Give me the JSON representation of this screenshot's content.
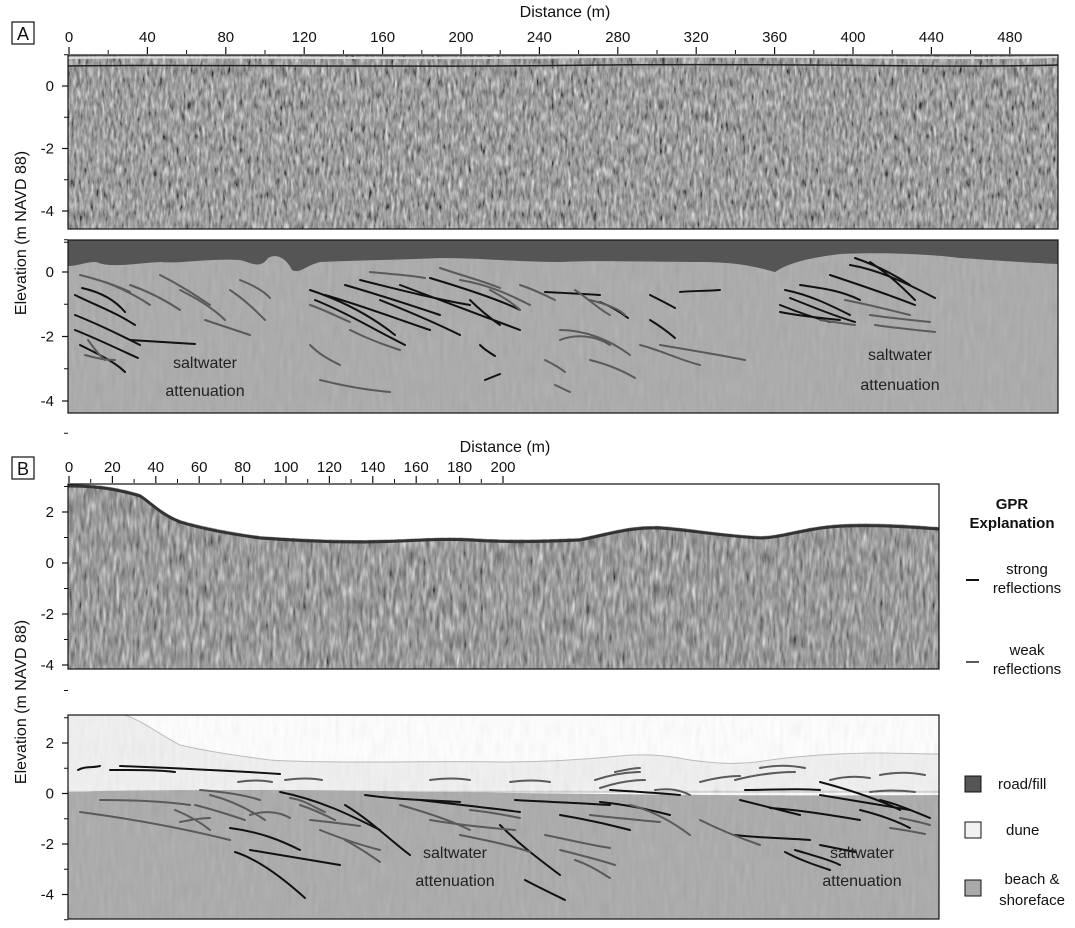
{
  "panel_a": {
    "letter": "A",
    "x_axis_title": "Distance (m)",
    "x_ticks": [
      "0",
      "40",
      "80",
      "120",
      "160",
      "200",
      "240",
      "280",
      "320",
      "360",
      "400",
      "440",
      "480"
    ],
    "y_ticks_top": [
      "0",
      "-2",
      "-4"
    ],
    "y_ticks_bottom": [
      "0",
      "-2",
      "-4"
    ],
    "annotations": [
      {
        "line1": "saltwater",
        "line2": "attenuation"
      },
      {
        "line1": "saltwater",
        "line2": "attenuation"
      }
    ]
  },
  "panel_b": {
    "letter": "B",
    "x_axis_title": "Distance (m)",
    "x_ticks": [
      "0",
      "20",
      "40",
      "60",
      "80",
      "100",
      "120",
      "140",
      "160",
      "180",
      "200"
    ],
    "y_ticks_top": [
      "2",
      "0",
      "-2",
      "-4"
    ],
    "y_ticks_bottom": [
      "2",
      "0",
      "-2",
      "-4"
    ],
    "annotations": [
      {
        "line1": "saltwater",
        "line2": "attenuation"
      },
      {
        "line1": "saltwater",
        "line2": "attenuation"
      }
    ]
  },
  "y_axis_title": "Elevation (m NAVD 88)",
  "legend": {
    "title_line1": "GPR",
    "title_line2": "Explanation",
    "items": [
      {
        "line1": "strong",
        "line2": "reflections",
        "color": "#111111"
      },
      {
        "line1": "weak",
        "line2": "reflections",
        "color": "#5a5a5a"
      }
    ],
    "units": [
      {
        "label": "road/fill",
        "color": "#555555"
      },
      {
        "label": "dune",
        "color": "#f1f1f1"
      },
      {
        "label_line1": "beach &",
        "label_line2": "shoreface",
        "color": "#a9a9a9"
      }
    ]
  },
  "colors": {
    "road_fill": "#555555",
    "dune": "#f1f1f1",
    "beach_shoreface": "#a9a9a9",
    "strong_reflection": "#111111",
    "weak_reflection": "#5a5a5a"
  }
}
